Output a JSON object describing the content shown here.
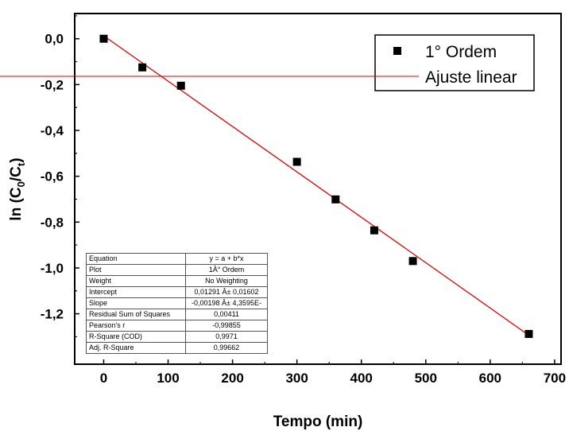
{
  "chart_data": {
    "type": "scatter",
    "xlabel": "Tempo (min)",
    "ylabel_main": "ln (C",
    "ylabel_sub0": "0",
    "ylabel_slash": "/C",
    "ylabel_subt": "t",
    "ylabel_close": ")",
    "xlim": [
      -45,
      710
    ],
    "ylim": [
      -1.42,
      0.11
    ],
    "x_ticks": [
      0,
      100,
      200,
      300,
      400,
      500,
      600,
      700
    ],
    "x_tick_labels": [
      "0",
      "100",
      "200",
      "300",
      "400",
      "500",
      "600",
      "700"
    ],
    "y_ticks": [
      0.0,
      -0.2,
      -0.4,
      -0.6,
      -0.8,
      -1.0,
      -1.2
    ],
    "y_tick_labels": [
      "0,0",
      "-0,2",
      "-0,4",
      "-0,6",
      "-0,8",
      "-1,0",
      "-1,2"
    ],
    "grid": false,
    "legend_position": "top-right",
    "series": [
      {
        "name": "1° Ordem",
        "kind": "scatter",
        "marker": "square",
        "color": "#000000",
        "x": [
          0,
          60,
          120,
          300,
          360,
          420,
          480,
          660
        ],
        "y": [
          0.0,
          -0.125,
          -0.205,
          -0.537,
          -0.701,
          -0.836,
          -0.97,
          -1.288
        ]
      },
      {
        "name": "Ajuste linear",
        "kind": "line",
        "color": "#e00000",
        "x": [
          0,
          660
        ],
        "y": [
          0.01291,
          -1.2938
        ]
      }
    ]
  },
  "fit_table": {
    "rows": [
      {
        "key": "Equation",
        "value": "y = a + b*x"
      },
      {
        "key": "Plot",
        "value": "1Â° Ordem"
      },
      {
        "key": "Weight",
        "value": "No Weighting"
      },
      {
        "key": "Intercept",
        "value": "0,01291 Â± 0,01602"
      },
      {
        "key": "Slope",
        "value": "-0,00198 Â± 4,3595E-"
      },
      {
        "key": "Residual Sum of Squares",
        "value": "0,00411"
      },
      {
        "key": "Pearson's r",
        "value": "-0,99855"
      },
      {
        "key": "R-Square (COD)",
        "value": "0,9971"
      },
      {
        "key": "Adj. R-Square",
        "value": "0,99662"
      }
    ]
  }
}
